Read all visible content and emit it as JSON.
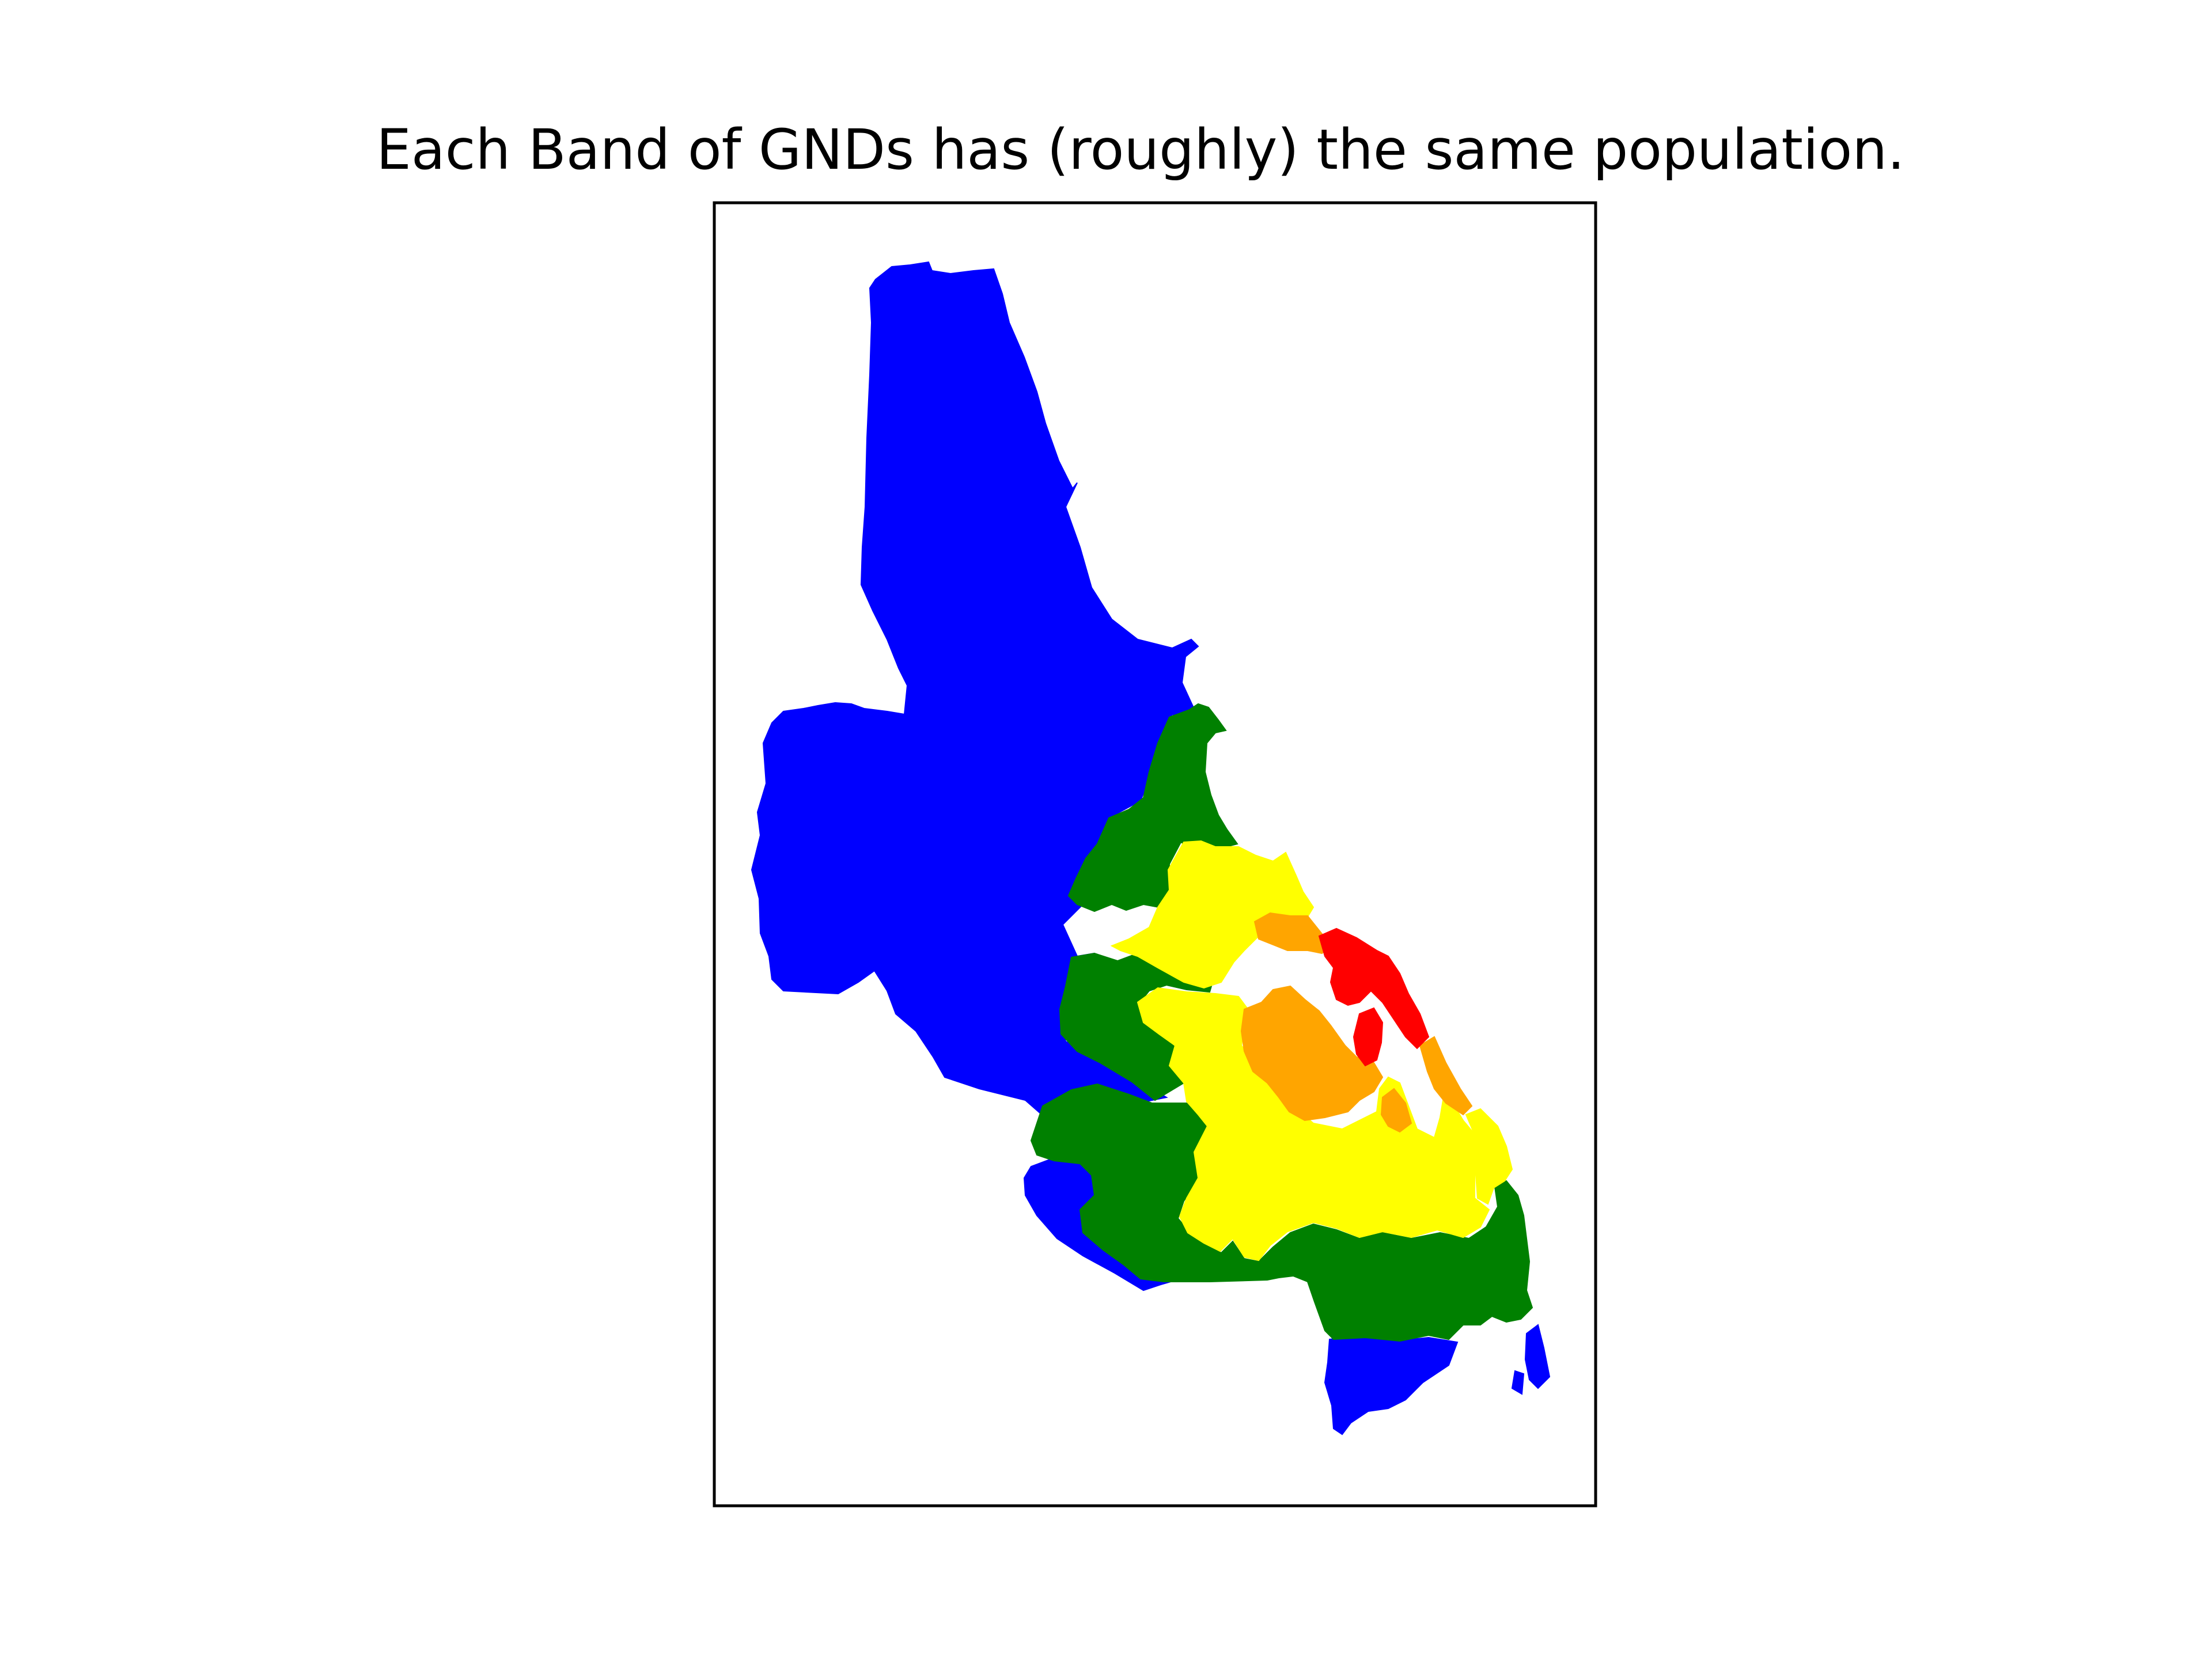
{
  "title": "Each Band of GNDs has (roughly) the same population.",
  "map": {
    "subject": "Administrative divisions (GNDs) colored by population band",
    "band_colors": {
      "band_1": "#0000ff",
      "band_2": "#008000",
      "band_3": "#ffff00",
      "band_4": "#ffa500",
      "band_5": "#ff0000"
    },
    "background_color": "#ffffff",
    "frame_color": "#000000"
  }
}
